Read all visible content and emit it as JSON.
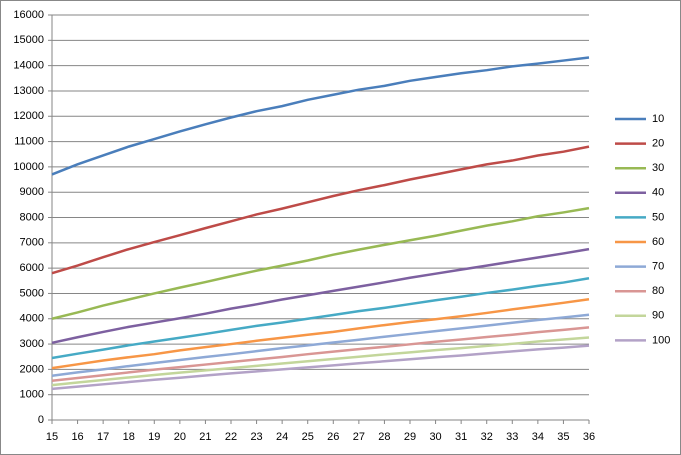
{
  "chart_data": {
    "type": "line",
    "x": [
      15,
      16,
      17,
      18,
      19,
      20,
      21,
      22,
      23,
      24,
      25,
      26,
      27,
      28,
      29,
      30,
      31,
      32,
      33,
      34,
      35,
      36
    ],
    "xlim": [
      15,
      36
    ],
    "xticks": [
      15,
      16,
      17,
      18,
      19,
      20,
      21,
      22,
      23,
      24,
      25,
      26,
      27,
      28,
      29,
      30,
      31,
      32,
      33,
      34,
      35,
      36
    ],
    "ylim": [
      0,
      16000
    ],
    "yticks": [
      0,
      1000,
      2000,
      3000,
      4000,
      5000,
      6000,
      7000,
      8000,
      9000,
      10000,
      11000,
      12000,
      13000,
      14000,
      15000,
      16000
    ],
    "grid": true,
    "legend": "right",
    "series": [
      {
        "name": "10",
        "color": "#4a7ebb",
        "values": [
          9700,
          10100,
          10450,
          10800,
          11100,
          11400,
          11680,
          11950,
          12200,
          12400,
          12650,
          12850,
          13050,
          13200,
          13400,
          13550,
          13700,
          13820,
          13970,
          14080,
          14200,
          14320
        ]
      },
      {
        "name": "20",
        "color": "#be4b48",
        "values": [
          5800,
          6100,
          6430,
          6750,
          7030,
          7300,
          7580,
          7850,
          8120,
          8350,
          8600,
          8850,
          9080,
          9280,
          9500,
          9700,
          9900,
          10100,
          10250,
          10450,
          10600,
          10800
        ]
      },
      {
        "name": "30",
        "color": "#98b954",
        "values": [
          4000,
          4250,
          4520,
          4760,
          5000,
          5230,
          5450,
          5680,
          5900,
          6100,
          6300,
          6530,
          6730,
          6920,
          7100,
          7280,
          7480,
          7680,
          7850,
          8050,
          8200,
          8370
        ]
      },
      {
        "name": "40",
        "color": "#7d60a0",
        "values": [
          3050,
          3270,
          3480,
          3680,
          3850,
          4020,
          4200,
          4400,
          4570,
          4760,
          4930,
          5100,
          5270,
          5440,
          5620,
          5780,
          5940,
          6100,
          6260,
          6420,
          6580,
          6750
        ]
      },
      {
        "name": "50",
        "color": "#46aac5",
        "values": [
          2450,
          2620,
          2780,
          2950,
          3100,
          3250,
          3400,
          3560,
          3720,
          3850,
          4000,
          4150,
          4300,
          4430,
          4580,
          4730,
          4870,
          5020,
          5150,
          5300,
          5430,
          5600
        ]
      },
      {
        "name": "60",
        "color": "#f79646",
        "values": [
          2050,
          2200,
          2350,
          2480,
          2600,
          2750,
          2880,
          3000,
          3130,
          3250,
          3370,
          3480,
          3620,
          3750,
          3870,
          3980,
          4100,
          4230,
          4370,
          4500,
          4630,
          4770
        ]
      },
      {
        "name": "70",
        "color": "#8ea9d6",
        "values": [
          1750,
          1880,
          2000,
          2130,
          2250,
          2370,
          2490,
          2600,
          2720,
          2840,
          2950,
          3060,
          3170,
          3290,
          3400,
          3510,
          3620,
          3730,
          3840,
          3950,
          4050,
          4160
        ]
      },
      {
        "name": "80",
        "color": "#d99694",
        "values": [
          1550,
          1660,
          1770,
          1880,
          1990,
          2090,
          2190,
          2290,
          2390,
          2490,
          2600,
          2700,
          2800,
          2890,
          2990,
          3090,
          3180,
          3280,
          3370,
          3470,
          3560,
          3660
        ]
      },
      {
        "name": "90",
        "color": "#c3d69b",
        "values": [
          1380,
          1480,
          1580,
          1680,
          1780,
          1870,
          1960,
          2050,
          2140,
          2230,
          2320,
          2410,
          2500,
          2590,
          2670,
          2760,
          2840,
          2930,
          3010,
          3100,
          3180,
          3260
        ]
      },
      {
        "name": "100",
        "color": "#b3a2c7",
        "values": [
          1230,
          1320,
          1410,
          1500,
          1590,
          1670,
          1760,
          1840,
          1920,
          2000,
          2080,
          2160,
          2240,
          2320,
          2400,
          2480,
          2550,
          2630,
          2710,
          2790,
          2860,
          2940
        ]
      }
    ]
  }
}
